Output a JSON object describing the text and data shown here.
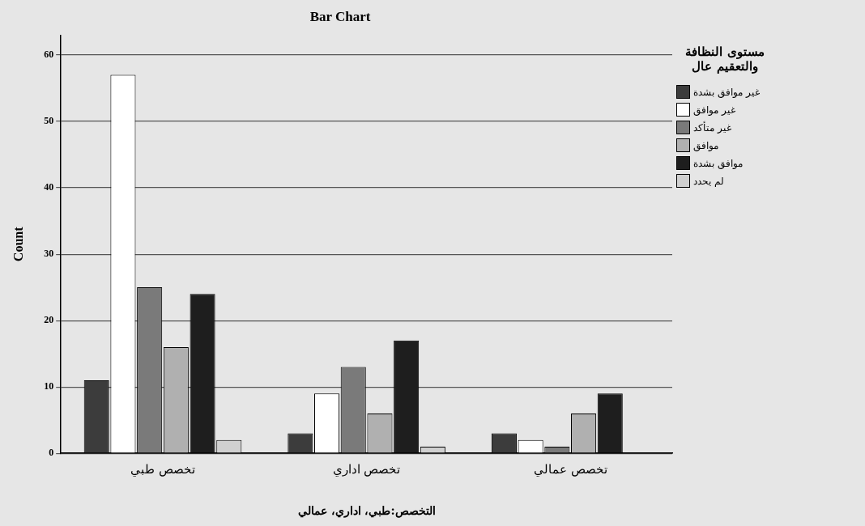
{
  "chart_data": {
    "type": "bar",
    "title": "Bar Chart",
    "xlabel": "التخصص:طبي، اداري، عمالي",
    "ylabel": "Count",
    "legend_title": "مستوى النظافة والتعقيم عال",
    "categories": [
      "تخصص طبي",
      "تخصص اداري",
      "تخصص عمالي"
    ],
    "series": [
      {
        "name": "غير موافق بشدة",
        "color": "#3c3c3c",
        "values": [
          11,
          3,
          3
        ]
      },
      {
        "name": "غير موافق",
        "color": "#ffffff",
        "values": [
          57,
          9,
          2
        ]
      },
      {
        "name": "غير متأكد",
        "color": "#7a7a7a",
        "values": [
          25,
          13,
          1
        ]
      },
      {
        "name": "موافق",
        "color": "#b0b0b0",
        "values": [
          16,
          6,
          6
        ]
      },
      {
        "name": "موافق بشدة",
        "color": "#1e1e1e",
        "values": [
          24,
          17,
          9
        ]
      },
      {
        "name": "لم يحدد",
        "color": "#d0d0d0",
        "values": [
          2,
          1,
          null
        ]
      }
    ],
    "ylim": [
      0,
      63
    ],
    "yticks": [
      0,
      10,
      20,
      30,
      40,
      50,
      60
    ],
    "grid": "y",
    "legend": "right"
  }
}
